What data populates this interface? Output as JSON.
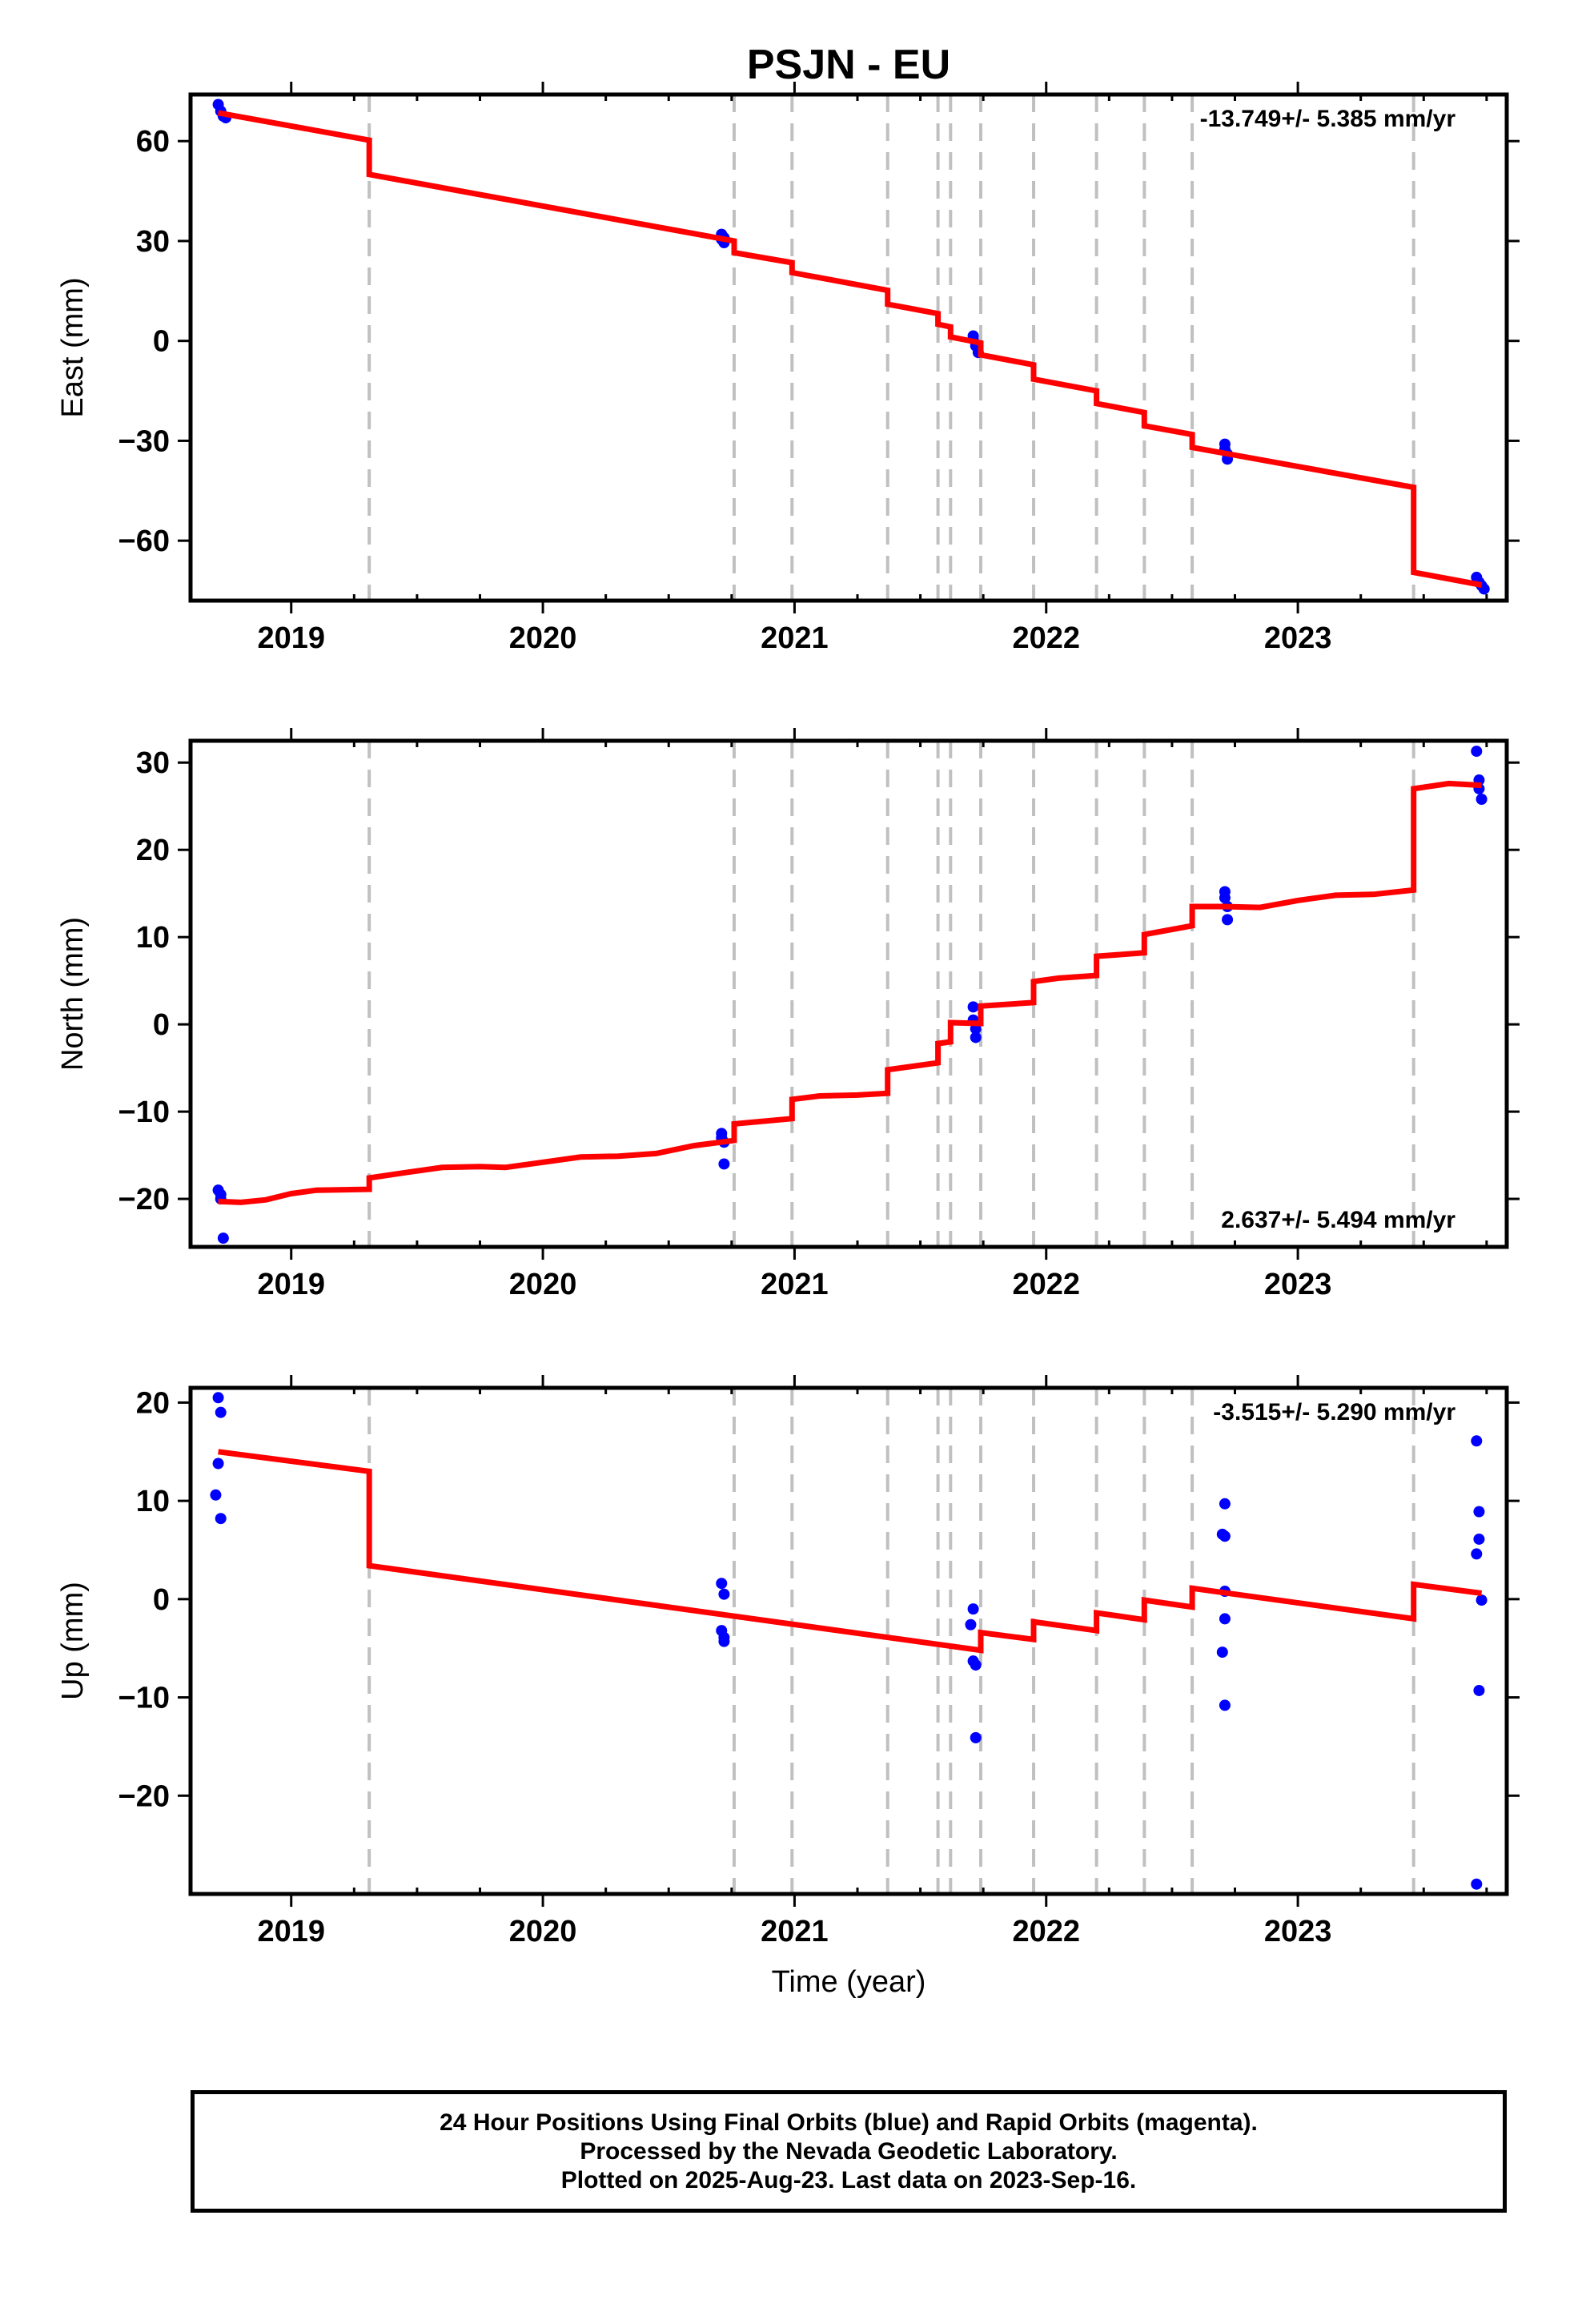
{
  "title": "PSJN - EU",
  "colors": {
    "final_orbits": "#0000ff",
    "model": "#ff0000",
    "steps": "#c0c0c0",
    "frame": "#000000"
  },
  "footer": {
    "line1": "24 Hour Positions Using Final Orbits (blue) and Rapid Orbits (magenta).",
    "line2": "Processed by the Nevada Geodetic Laboratory.",
    "line3": "Plotted on 2025-Aug-23. Last data on 2023-Sep-16."
  },
  "chart_data": [
    {
      "type": "scatter",
      "ylabel": "East (mm)",
      "xlabel": "",
      "rate": "-13.749+/- 5.385 mm/yr",
      "rate_position": "top-right",
      "xlim": [
        2018.6,
        2023.83
      ],
      "ylim": [
        -78,
        74
      ],
      "x_ticks": [
        2019,
        2020,
        2021,
        2022,
        2023
      ],
      "x_tick_labels": [
        "2019",
        "2020",
        "2021",
        "2022",
        "2023"
      ],
      "y_ticks": [
        -60,
        -30,
        0,
        30,
        60
      ],
      "y_tick_labels": [
        "−60",
        "−30",
        "0",
        "30",
        "60"
      ],
      "steps": [
        2019.31,
        2020.76,
        2020.99,
        2021.37,
        2021.57,
        2021.62,
        2021.74,
        2021.95,
        2022.2,
        2022.39,
        2022.58,
        2023.46
      ],
      "series": [
        {
          "kind": "points",
          "color": "#0000ff",
          "points": [
            [
              2018.71,
              71
            ],
            [
              2018.72,
              69
            ],
            [
              2018.73,
              67.5
            ],
            [
              2018.74,
              67
            ],
            [
              2020.71,
              32
            ],
            [
              2020.71,
              30.5
            ],
            [
              2020.72,
              31
            ],
            [
              2020.72,
              29.5
            ],
            [
              2021.71,
              1.5
            ],
            [
              2021.71,
              0.5
            ],
            [
              2021.72,
              -1.5
            ],
            [
              2021.73,
              -3.5
            ],
            [
              2022.71,
              -31
            ],
            [
              2022.71,
              -32.5
            ],
            [
              2022.72,
              -34
            ],
            [
              2022.72,
              -35.5
            ],
            [
              2023.71,
              -71
            ],
            [
              2023.72,
              -72.5
            ],
            [
              2023.73,
              -73.5
            ],
            [
              2023.74,
              -74.5
            ]
          ]
        },
        {
          "kind": "line",
          "color": "#ff0000",
          "points": [
            [
              2018.71,
              68.5
            ],
            [
              2019.31,
              60.3
            ],
            [
              2019.31,
              50
            ],
            [
              2020.76,
              30
            ],
            [
              2020.76,
              26.5
            ],
            [
              2020.99,
              23.5
            ],
            [
              2020.99,
              20.5
            ],
            [
              2021.37,
              15.2
            ],
            [
              2021.37,
              11
            ],
            [
              2021.57,
              8.2
            ],
            [
              2021.57,
              5
            ],
            [
              2021.62,
              4.2
            ],
            [
              2021.62,
              1.2
            ],
            [
              2021.74,
              -0.6
            ],
            [
              2021.74,
              -4.2
            ],
            [
              2021.95,
              -7.2
            ],
            [
              2021.95,
              -11.5
            ],
            [
              2022.2,
              -15
            ],
            [
              2022.2,
              -18.8
            ],
            [
              2022.39,
              -21.5
            ],
            [
              2022.39,
              -25.5
            ],
            [
              2022.58,
              -28.1
            ],
            [
              2022.58,
              -32
            ],
            [
              2023.46,
              -44
            ],
            [
              2023.46,
              -69.5
            ],
            [
              2023.73,
              -73.3
            ]
          ]
        }
      ]
    },
    {
      "type": "scatter",
      "ylabel": "North (mm)",
      "xlabel": "",
      "rate": "2.637+/- 5.494 mm/yr",
      "rate_position": "bottom-right",
      "xlim": [
        2018.6,
        2023.83
      ],
      "ylim": [
        -25.5,
        32.5
      ],
      "x_ticks": [
        2019,
        2020,
        2021,
        2022,
        2023
      ],
      "x_tick_labels": [
        "2019",
        "2020",
        "2021",
        "2022",
        "2023"
      ],
      "y_ticks": [
        -20,
        -10,
        0,
        10,
        20,
        30
      ],
      "y_tick_labels": [
        "−20",
        "−10",
        "0",
        "10",
        "20",
        "30"
      ],
      "steps": [
        2019.31,
        2020.76,
        2020.99,
        2021.37,
        2021.57,
        2021.62,
        2021.74,
        2021.95,
        2022.2,
        2022.39,
        2022.58,
        2023.46
      ],
      "series": [
        {
          "kind": "points",
          "color": "#0000ff",
          "points": [
            [
              2018.71,
              -19
            ],
            [
              2018.72,
              -19.5
            ],
            [
              2018.72,
              -20
            ],
            [
              2018.73,
              -24.5
            ],
            [
              2020.71,
              -12.5
            ],
            [
              2020.71,
              -13
            ],
            [
              2020.72,
              -13.5
            ],
            [
              2020.72,
              -16
            ],
            [
              2021.71,
              2
            ],
            [
              2021.71,
              0.5
            ],
            [
              2021.72,
              -0.5
            ],
            [
              2021.72,
              -1.5
            ],
            [
              2022.71,
              15.2
            ],
            [
              2022.71,
              14.5
            ],
            [
              2022.72,
              13.5
            ],
            [
              2022.72,
              12
            ],
            [
              2023.71,
              31.3
            ],
            [
              2023.72,
              28
            ],
            [
              2023.72,
              27
            ],
            [
              2023.73,
              25.8
            ]
          ]
        },
        {
          "kind": "line",
          "color": "#ff0000",
          "points": [
            [
              2018.71,
              -20.3
            ],
            [
              2018.8,
              -20.4
            ],
            [
              2018.9,
              -20.1
            ],
            [
              2019.0,
              -19.4
            ],
            [
              2019.1,
              -19
            ],
            [
              2019.31,
              -18.9
            ],
            [
              2019.31,
              -17.6
            ],
            [
              2019.45,
              -17
            ],
            [
              2019.6,
              -16.4
            ],
            [
              2019.75,
              -16.3
            ],
            [
              2019.85,
              -16.4
            ],
            [
              2020.0,
              -15.8
            ],
            [
              2020.15,
              -15.2
            ],
            [
              2020.3,
              -15.1
            ],
            [
              2020.45,
              -14.8
            ],
            [
              2020.6,
              -13.9
            ],
            [
              2020.76,
              -13.3
            ],
            [
              2020.76,
              -11.4
            ],
            [
              2020.99,
              -10.8
            ],
            [
              2020.99,
              -8.6
            ],
            [
              2021.1,
              -8.2
            ],
            [
              2021.25,
              -8.1
            ],
            [
              2021.37,
              -7.9
            ],
            [
              2021.37,
              -5.2
            ],
            [
              2021.57,
              -4.4
            ],
            [
              2021.57,
              -2.2
            ],
            [
              2021.62,
              -2
            ],
            [
              2021.62,
              0.2
            ],
            [
              2021.74,
              0.1
            ],
            [
              2021.74,
              2.1
            ],
            [
              2021.95,
              2.5
            ],
            [
              2021.95,
              4.9
            ],
            [
              2022.05,
              5.3
            ],
            [
              2022.2,
              5.6
            ],
            [
              2022.2,
              7.8
            ],
            [
              2022.39,
              8.2
            ],
            [
              2022.39,
              10.3
            ],
            [
              2022.58,
              11.3
            ],
            [
              2022.58,
              13.5
            ],
            [
              2022.7,
              13.5
            ],
            [
              2022.85,
              13.4
            ],
            [
              2023.0,
              14.2
            ],
            [
              2023.15,
              14.8
            ],
            [
              2023.3,
              14.9
            ],
            [
              2023.46,
              15.4
            ],
            [
              2023.46,
              27
            ],
            [
              2023.6,
              27.6
            ],
            [
              2023.73,
              27.4
            ]
          ]
        }
      ]
    },
    {
      "type": "scatter",
      "ylabel": "Up (mm)",
      "xlabel": "Time (year)",
      "rate": "-3.515+/- 5.290 mm/yr",
      "rate_position": "top-right",
      "xlim": [
        2018.6,
        2023.83
      ],
      "ylim": [
        -30,
        21.5
      ],
      "x_ticks": [
        2019,
        2020,
        2021,
        2022,
        2023
      ],
      "x_tick_labels": [
        "2019",
        "2020",
        "2021",
        "2022",
        "2023"
      ],
      "y_ticks": [
        -20,
        -10,
        0,
        10,
        20
      ],
      "y_tick_labels": [
        "−20",
        "−10",
        "0",
        "10",
        "20"
      ],
      "steps": [
        2019.31,
        2020.76,
        2020.99,
        2021.37,
        2021.57,
        2021.62,
        2021.74,
        2021.95,
        2022.2,
        2022.39,
        2022.58,
        2023.46
      ],
      "series": [
        {
          "kind": "points",
          "color": "#0000ff",
          "points": [
            [
              2018.71,
              20.5
            ],
            [
              2018.72,
              19
            ],
            [
              2018.71,
              13.8
            ],
            [
              2018.7,
              10.6
            ],
            [
              2018.72,
              8.2
            ],
            [
              2020.71,
              1.6
            ],
            [
              2020.72,
              0.5
            ],
            [
              2020.71,
              -3.2
            ],
            [
              2020.72,
              -3.9
            ],
            [
              2020.72,
              -4.3
            ],
            [
              2021.71,
              -1
            ],
            [
              2021.7,
              -2.6
            ],
            [
              2021.71,
              -6.3
            ],
            [
              2021.72,
              -6.7
            ],
            [
              2021.72,
              -14.1
            ],
            [
              2022.71,
              9.7
            ],
            [
              2022.7,
              6.6
            ],
            [
              2022.71,
              6.4
            ],
            [
              2022.71,
              0.8
            ],
            [
              2022.71,
              -2
            ],
            [
              2022.7,
              -5.4
            ],
            [
              2022.71,
              -10.8
            ],
            [
              2023.71,
              16.1
            ],
            [
              2023.72,
              8.9
            ],
            [
              2023.72,
              6.1
            ],
            [
              2023.71,
              4.6
            ],
            [
              2023.73,
              -0.1
            ],
            [
              2023.72,
              -9.3
            ],
            [
              2023.71,
              -29
            ]
          ]
        },
        {
          "kind": "line",
          "color": "#ff0000",
          "points": [
            [
              2018.71,
              15
            ],
            [
              2019.31,
              13
            ],
            [
              2019.31,
              3.4
            ],
            [
              2021.74,
              -5.2
            ],
            [
              2021.74,
              -3.4
            ],
            [
              2021.95,
              -4.1
            ],
            [
              2021.95,
              -2.3
            ],
            [
              2022.2,
              -3.2
            ],
            [
              2022.2,
              -1.4
            ],
            [
              2022.39,
              -2.1
            ],
            [
              2022.39,
              -0.1
            ],
            [
              2022.58,
              -0.8
            ],
            [
              2022.58,
              1.1
            ],
            [
              2023.46,
              -2
            ],
            [
              2023.46,
              1.5
            ],
            [
              2023.73,
              0.6
            ]
          ]
        }
      ]
    }
  ]
}
